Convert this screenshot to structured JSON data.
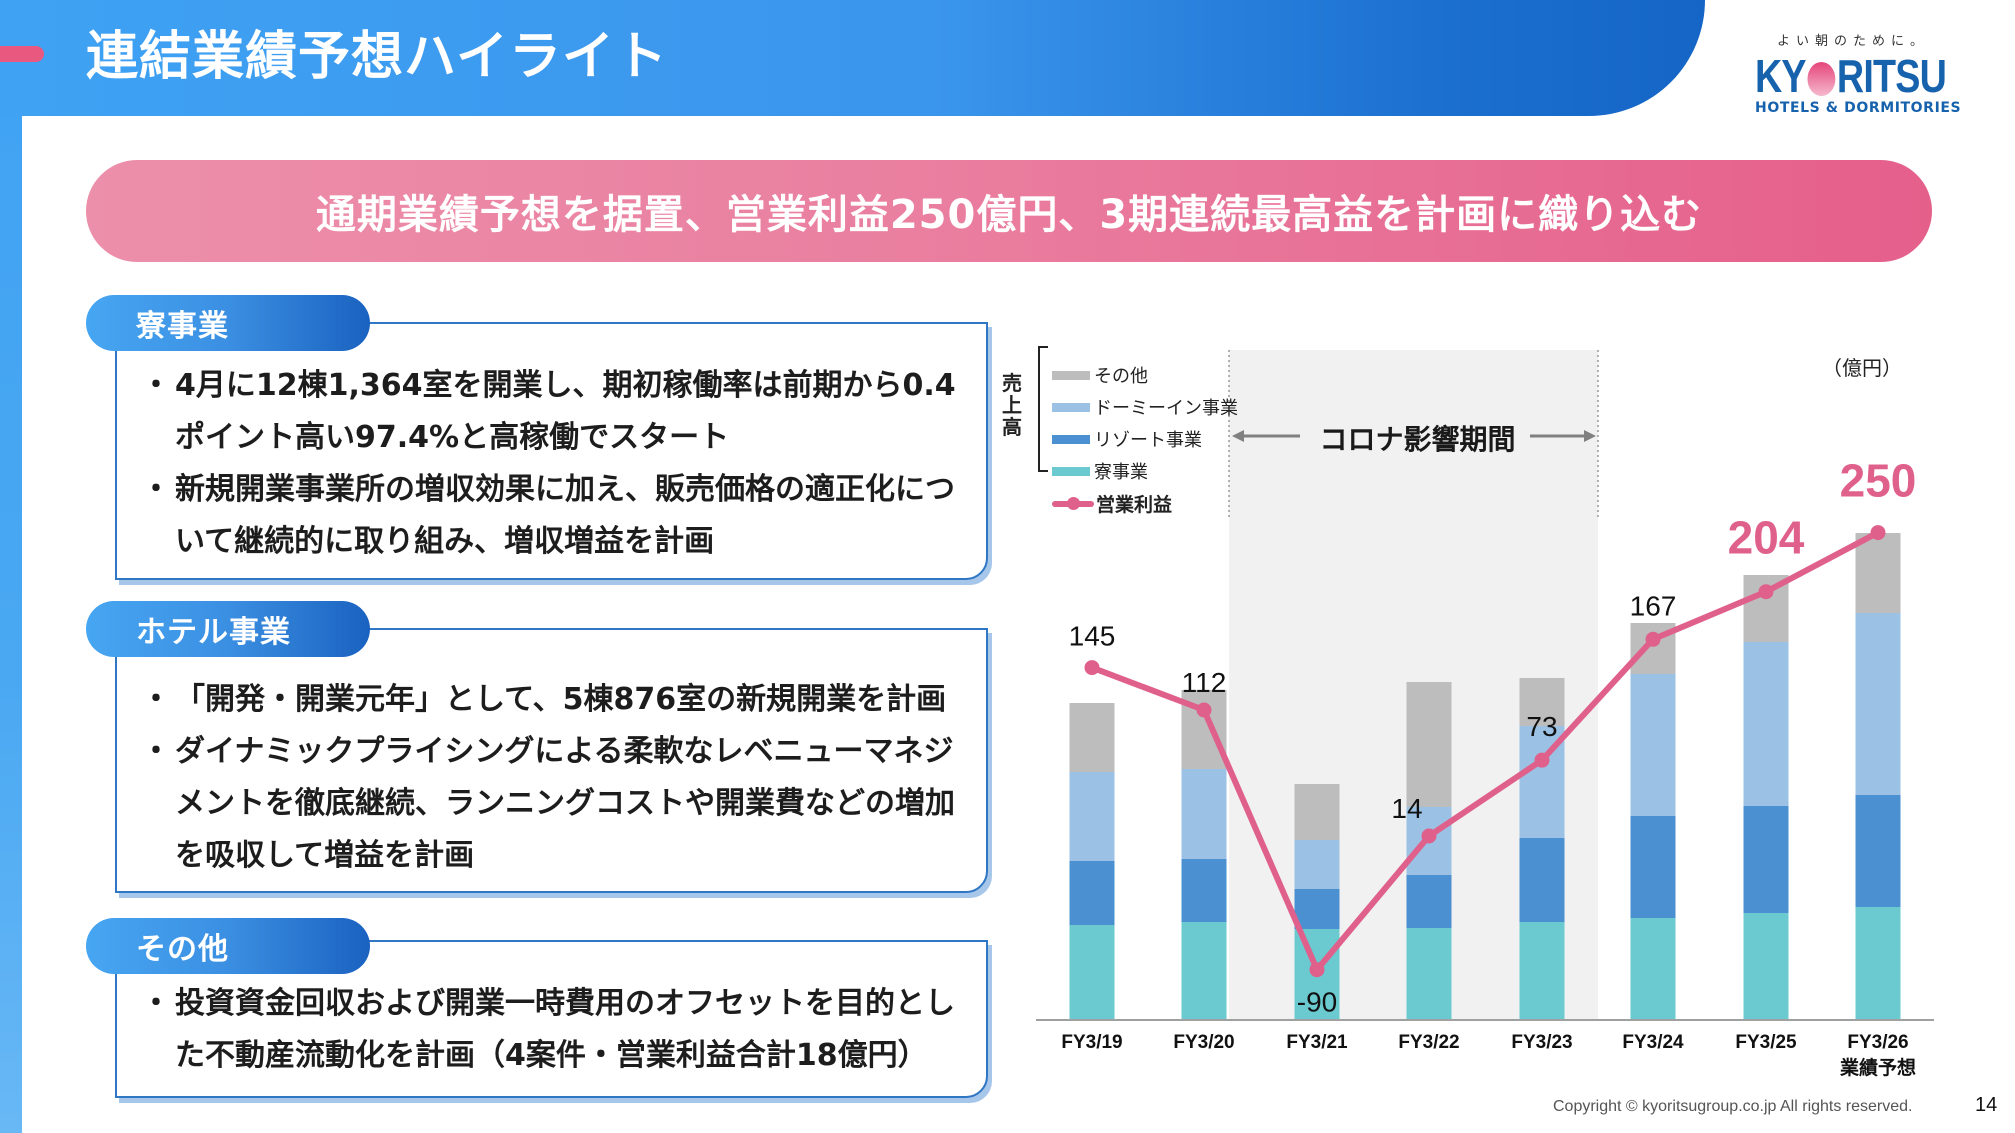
{
  "header": {
    "title": "連結業績予想ハイライト"
  },
  "logo": {
    "tagline": "よい朝のために。",
    "word_left": "KY",
    "word_right": "RITSU",
    "sub": "HOTELS & DORMITORIES"
  },
  "headline": "通期業績予想を据置、営業利益250億円、3期連続最高益を計画に織り込む",
  "sections": [
    {
      "tag": "寮事業",
      "bullets": [
        "4月に12棟1,364室を開業し、期初稼働率は前期から0.4ポイント高い97.4%と高稼働でスタート",
        "新規開業事業所の増収効果に加え、販売価格の適正化について継続的に取り組み、増収増益を計画"
      ]
    },
    {
      "tag": "ホテル事業",
      "bullets": [
        "「開発・開業元年」として、5棟876室の新規開業を計画",
        "ダイナミックプライシングによる柔軟なレベニューマネジメントを徹底継続、ランニングコストや開業費などの増加を吸収して増益を計画"
      ]
    },
    {
      "tag": "その他",
      "bullets": [
        "投資資金回収および開業一時費用のオフセットを目的とした不動産流動化を計画（4案件・営業利益合計18億円）"
      ]
    }
  ],
  "chart": {
    "unit": "（億円）",
    "sales_label": "売上高",
    "covid_label": "コロナ影響期間",
    "legend": [
      {
        "label": "その他",
        "color": "#bdbdbd"
      },
      {
        "label": "ドーミーイン事業",
        "color": "#9bc1e4"
      },
      {
        "label": "リゾート事業",
        "color": "#4b90d0"
      },
      {
        "label": "寮事業",
        "color": "#6bcad0"
      },
      {
        "label": "営業利益",
        "color": "#e0608c"
      }
    ]
  },
  "chart_data": {
    "type": "bar",
    "title": "",
    "xlabel": "",
    "ylabel": "",
    "unit": "億円",
    "categories": [
      "FY3/19",
      "FY3/20",
      "FY3/21",
      "FY3/22",
      "FY3/23",
      "FY3/24",
      "FY3/25",
      "FY3/26"
    ],
    "category_sublabels": [
      "",
      "",
      "",
      "",
      "",
      "",
      "",
      "業績予想"
    ],
    "stacked": true,
    "sales_note": "Sales bars have no axis; values are relative heights estimated from pixels",
    "series": [
      {
        "name": "寮事業",
        "type": "bar",
        "color": "#6bcad0",
        "values": [
          94,
          97,
          90,
          91,
          97,
          101,
          106,
          112
        ]
      },
      {
        "name": "リゾート事業",
        "type": "bar",
        "color": "#4b90d0",
        "values": [
          64,
          63,
          40,
          53,
          84,
          102,
          107,
          112
        ]
      },
      {
        "name": "ドーミーイン事業",
        "type": "bar",
        "color": "#9bc1e4",
        "values": [
          89,
          90,
          49,
          68,
          112,
          142,
          164,
          182
        ]
      },
      {
        "name": "その他",
        "type": "bar",
        "color": "#bdbdbd",
        "values": [
          69,
          79,
          56,
          125,
          48,
          51,
          67,
          80
        ]
      },
      {
        "name": "営業利益",
        "type": "line",
        "color": "#e0608c",
        "values": [
          145,
          112,
          -90,
          14,
          73,
          167,
          204,
          250
        ]
      }
    ],
    "highlighted_labels": [
      6,
      7
    ],
    "shaded_range": {
      "from": "FY3/21",
      "to": "FY3/23",
      "label": "コロナ影響期間"
    },
    "grid": false,
    "legend_position": "top-left"
  },
  "footer": {
    "copyright": "Copyright © kyoritsugroup.co.jp All rights reserved.",
    "page": "14"
  }
}
